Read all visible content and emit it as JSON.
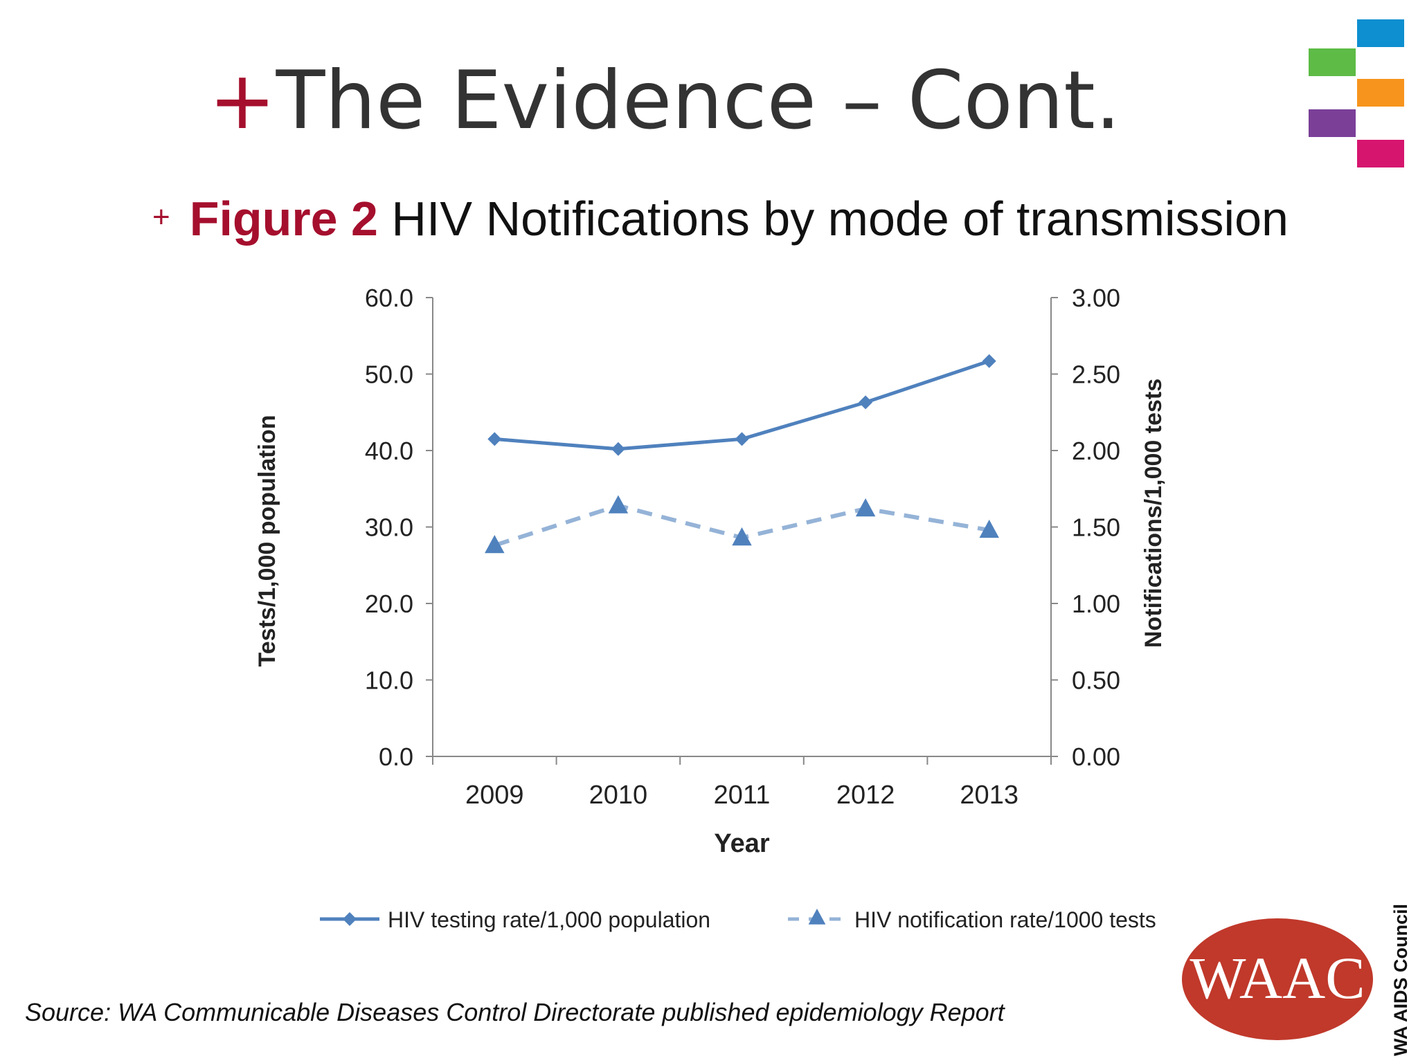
{
  "slide": {
    "title_plus": "+",
    "title": "The Evidence – Cont.",
    "subtitle_bullet": "+",
    "subtitle_figure": "Figure 2",
    "subtitle_text": " HIV Notifications by mode of transmission",
    "source": "Source: WA Communicable Diseases Control Directorate published epidemiology Report",
    "logo_text": "WAAC",
    "council_text": "WA AIDS Council",
    "colors": {
      "accent": "#a50f2d",
      "series": "#4f81bd",
      "series_light": "#95b3d7",
      "logo": "#c0392b",
      "blocks": [
        "#0d8fd0",
        "#5dbb46",
        "#f7941d",
        "#7b3f98",
        "#d6156e"
      ]
    }
  },
  "chart_data": {
    "type": "line",
    "title": "",
    "xlabel": "Year",
    "ylabel": "Tests/1,000 population",
    "y2label": "Notifications/1,000 tests",
    "categories": [
      "2009",
      "2010",
      "2011",
      "2012",
      "2013"
    ],
    "ylim": [
      0,
      60
    ],
    "y2lim": [
      0,
      3
    ],
    "yticks": [
      "0.0",
      "10.0",
      "20.0",
      "30.0",
      "40.0",
      "50.0",
      "60.0"
    ],
    "y2ticks": [
      "0.00",
      "0.50",
      "1.00",
      "1.50",
      "2.00",
      "2.50",
      "3.00"
    ],
    "grid": false,
    "legend_position": "bottom",
    "series": [
      {
        "name": "HIV testing rate/1,000 population",
        "axis": "left",
        "marker": "diamond",
        "style": "solid",
        "values": [
          41.5,
          40.2,
          41.5,
          46.3,
          51.7
        ]
      },
      {
        "name": "HIV notification rate/1000 tests",
        "axis": "right",
        "marker": "triangle",
        "style": "dashed",
        "values": [
          1.38,
          1.64,
          1.43,
          1.62,
          1.48
        ]
      }
    ]
  }
}
